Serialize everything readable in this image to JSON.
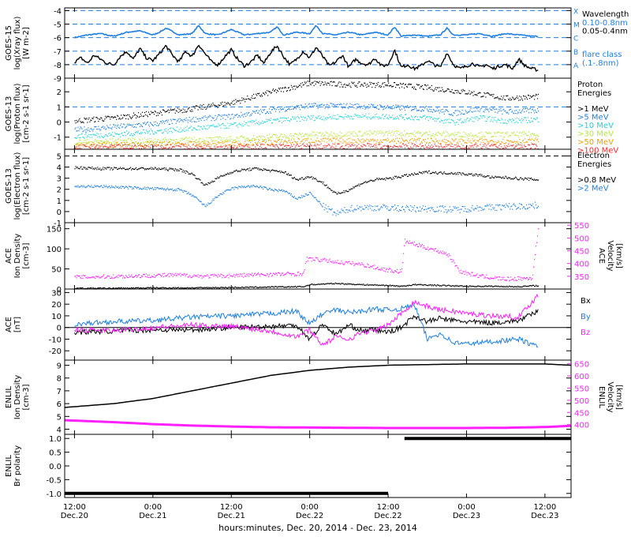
{
  "figure": {
    "x_caption": "hours:minutes, Dec. 20, 2014 - Dec. 23, 2014",
    "x_ticks": [
      {
        "h": 0,
        "time": "12:00",
        "date": "Dec.20"
      },
      {
        "h": 12,
        "time": "0:00",
        "date": "Dec.21"
      },
      {
        "h": 24,
        "time": "12:00",
        "date": "Dec.21"
      },
      {
        "h": 36,
        "time": "0:00",
        "date": "Dec.22"
      },
      {
        "h": 48,
        "time": "12:00",
        "date": "Dec.22"
      },
      {
        "h": 60,
        "time": "0:00",
        "date": "Dec.23"
      },
      {
        "h": 72,
        "time": "12:00",
        "date": "Dec.23"
      }
    ],
    "x_range_hours": [
      -1.5,
      76
    ]
  },
  "chart_data": [
    {
      "id": "xray",
      "type": "line",
      "ylabel": [
        "GOES-15",
        "log(Xray flux)",
        "[W m-2]"
      ],
      "ylim": [
        -9,
        -3.8
      ],
      "yticks": [
        -9,
        -8,
        -7,
        -6,
        -5,
        -4
      ],
      "reference_lines": [
        {
          "y": -4,
          "label": "X"
        },
        {
          "y": -5,
          "label": "M"
        },
        {
          "y": -6,
          "label": "C"
        },
        {
          "y": -7,
          "label": "B"
        },
        {
          "y": -8,
          "label": "A"
        }
      ],
      "legend_title": "Wavelength",
      "legend_note": [
        "flare class",
        "(.1-.8nm)"
      ],
      "series": [
        {
          "name": "0.10-0.8nm",
          "color": "#1e7fe0",
          "width": 1.6,
          "x": [
            0,
            2,
            4,
            6,
            8,
            10,
            12,
            13,
            14,
            16,
            18,
            19,
            20,
            22,
            24,
            26,
            28,
            30,
            31,
            32,
            34,
            36,
            37,
            38,
            40,
            42,
            44,
            46,
            48,
            49,
            50,
            52,
            54,
            56,
            57,
            58,
            60,
            62,
            64,
            66,
            68,
            70,
            71
          ],
          "y": [
            -6.0,
            -5.8,
            -5.7,
            -5.9,
            -5.6,
            -5.5,
            -5.8,
            -5.6,
            -5.3,
            -5.8,
            -5.7,
            -5.1,
            -5.7,
            -5.8,
            -5.4,
            -5.8,
            -5.7,
            -5.6,
            -5.2,
            -5.8,
            -5.6,
            -5.7,
            -5.1,
            -5.7,
            -5.8,
            -5.6,
            -5.8,
            -5.6,
            -5.8,
            -5.2,
            -5.9,
            -5.8,
            -5.9,
            -5.8,
            -5.3,
            -5.8,
            -5.8,
            -5.7,
            -5.9,
            -5.7,
            -5.8,
            -5.9,
            -5.9
          ]
        },
        {
          "name": "0.05-0.4nm",
          "color": "#000000",
          "width": 1.4,
          "x": [
            0,
            1,
            2,
            3,
            4,
            5,
            6,
            7,
            8,
            9,
            10,
            11,
            12,
            13,
            14,
            15,
            16,
            17,
            18,
            19,
            20,
            21,
            22,
            23,
            24,
            25,
            26,
            27,
            28,
            29,
            30,
            31,
            32,
            33,
            34,
            35,
            36,
            37,
            38,
            39,
            40,
            41,
            42,
            43,
            44,
            45,
            46,
            47,
            48,
            49,
            50,
            51,
            52,
            53,
            54,
            55,
            56,
            57,
            58,
            59,
            60,
            61,
            62,
            63,
            64,
            65,
            66,
            67,
            68,
            69,
            70,
            71
          ],
          "y": [
            -7.8,
            -7.5,
            -7.9,
            -7.3,
            -7.6,
            -7.9,
            -8.0,
            -7.4,
            -7.0,
            -7.6,
            -6.8,
            -7.5,
            -7.7,
            -7.2,
            -6.6,
            -7.3,
            -7.8,
            -7.0,
            -7.4,
            -6.5,
            -7.2,
            -7.8,
            -8.0,
            -7.4,
            -6.9,
            -7.6,
            -8.1,
            -7.8,
            -7.3,
            -7.9,
            -7.1,
            -6.6,
            -7.4,
            -8.0,
            -7.6,
            -7.0,
            -7.5,
            -6.7,
            -7.4,
            -8.1,
            -7.8,
            -7.3,
            -8.2,
            -7.6,
            -7.9,
            -8.0,
            -7.5,
            -8.1,
            -8.0,
            -6.9,
            -8.2,
            -8.0,
            -8.3,
            -8.1,
            -7.7,
            -8.0,
            -8.2,
            -7.1,
            -8.0,
            -8.3,
            -8.1,
            -7.9,
            -8.2,
            -8.0,
            -8.3,
            -8.1,
            -8.0,
            -8.3,
            -7.6,
            -8.1,
            -8.3,
            -8.4
          ]
        }
      ]
    },
    {
      "id": "proton",
      "type": "scatter",
      "ylabel": [
        "GOES-13",
        "log(Proton flux)",
        "[cm-2 s-1 sr-1]"
      ],
      "ylim": [
        -1.8,
        2.9
      ],
      "yticks": [
        -1,
        0,
        1,
        2
      ],
      "reference_lines": [
        {
          "y": 1,
          "label": ""
        }
      ],
      "legend_title": "Proton Energies",
      "series": [
        {
          "name": ">1 MeV",
          "color": "#000000",
          "x": [
            0,
            6,
            12,
            18,
            24,
            30,
            36,
            42,
            48,
            54,
            60,
            66,
            71
          ],
          "y": [
            0.1,
            0.3,
            0.6,
            0.9,
            1.3,
            2.0,
            2.6,
            2.5,
            2.5,
            2.3,
            2.0,
            1.6,
            1.7
          ]
        },
        {
          "name": ">5 MeV",
          "color": "#1e7fe0",
          "x": [
            0,
            6,
            12,
            18,
            24,
            30,
            36,
            42,
            48,
            54,
            58,
            62,
            66,
            71
          ],
          "y": [
            -0.5,
            -0.3,
            -0.1,
            0.2,
            0.4,
            0.8,
            1.1,
            1.1,
            1.0,
            0.9,
            0.6,
            0.9,
            0.7,
            0.8
          ]
        },
        {
          "name": ">10 MeV",
          "color": "#22d4d4",
          "x": [
            0,
            6,
            12,
            18,
            24,
            30,
            36,
            42,
            48,
            54,
            58,
            62,
            66,
            71
          ],
          "y": [
            -0.9,
            -0.8,
            -0.6,
            -0.4,
            -0.2,
            0.1,
            0.3,
            0.4,
            0.4,
            0.3,
            0.0,
            0.3,
            0.1,
            0.2
          ]
        },
        {
          "name": ">30 MeV",
          "color": "#b8e838",
          "x": [
            0,
            12,
            24,
            36,
            48,
            60,
            71
          ],
          "y": [
            -1.3,
            -1.2,
            -1.1,
            -0.8,
            -0.7,
            -0.8,
            -0.8
          ]
        },
        {
          "name": ">50 MeV",
          "color": "#f0a000",
          "x": [
            0,
            12,
            24,
            36,
            48,
            60,
            71
          ],
          "y": [
            -1.5,
            -1.45,
            -1.4,
            -1.2,
            -1.2,
            -1.25,
            -1.25
          ]
        },
        {
          "name": ">100 MeV",
          "color": "#ff2a2a",
          "x": [
            0,
            12,
            24,
            36,
            48,
            60,
            71
          ],
          "y": [
            -1.65,
            -1.62,
            -1.62,
            -1.58,
            -1.58,
            -1.6,
            -1.6
          ]
        }
      ]
    },
    {
      "id": "electron",
      "type": "scatter",
      "ylabel": [
        "GOES-13",
        "log(Electron flux)",
        "[cm-2 s-1 sr-1]"
      ],
      "ylim": [
        -1,
        5.6
      ],
      "yticks": [
        -1,
        0,
        1,
        2,
        3,
        4,
        5
      ],
      "reference_lines": [
        {
          "y": 5,
          "label": ""
        }
      ],
      "legend_title": "Electron Energies",
      "series": [
        {
          "name": ">0.8 MeV",
          "color": "#000000",
          "x": [
            0,
            4,
            8,
            12,
            16,
            18,
            20,
            22,
            24,
            26,
            28,
            30,
            32,
            34,
            36,
            38,
            40,
            42,
            44,
            46,
            48,
            50,
            52,
            54,
            56,
            58,
            60,
            62,
            64,
            66,
            68,
            71
          ],
          "y": [
            4.0,
            3.9,
            3.9,
            3.9,
            3.8,
            3.4,
            2.4,
            3.1,
            3.6,
            3.8,
            3.9,
            3.7,
            3.6,
            2.9,
            3.2,
            2.6,
            1.6,
            2.0,
            2.6,
            2.9,
            3.0,
            3.2,
            3.4,
            3.6,
            3.5,
            3.5,
            3.4,
            3.3,
            3.1,
            3.1,
            3.0,
            2.9
          ]
        },
        {
          "name": ">2 MeV",
          "color": "#1e7fe0",
          "x": [
            0,
            4,
            8,
            12,
            16,
            18,
            20,
            22,
            24,
            26,
            28,
            30,
            32,
            34,
            36,
            38,
            40,
            42,
            44,
            46,
            48,
            50,
            52,
            54,
            56,
            58,
            60,
            62,
            64,
            66,
            68,
            71
          ],
          "y": [
            2.3,
            2.3,
            2.2,
            2.1,
            2.0,
            1.5,
            0.5,
            1.5,
            2.1,
            2.3,
            2.3,
            2.0,
            1.9,
            1.2,
            1.7,
            0.5,
            -0.2,
            0.3,
            0.4,
            0.4,
            0.4,
            0.3,
            0.3,
            0.3,
            0.3,
            0.2,
            0.3,
            0.4,
            0.4,
            0.5,
            0.5,
            0.6
          ]
        }
      ]
    },
    {
      "id": "ace_density",
      "type": "scatter",
      "ylabel": [
        "ACE",
        "Ion Density",
        "[cm-3]"
      ],
      "ylabel_right": [
        "ACE",
        "Velocity",
        "[km/s]"
      ],
      "ylim": [
        0,
        165
      ],
      "yticks": [
        0,
        50,
        100,
        150
      ],
      "ylim_right": [
        300,
        560
      ],
      "yticks_right": [
        350,
        400,
        450,
        500,
        550
      ],
      "series": [
        {
          "name": "Ion Density",
          "color": "#000000",
          "axis": "left",
          "x": [
            0,
            6,
            12,
            18,
            24,
            30,
            35,
            36,
            40,
            44,
            48,
            50,
            52,
            56,
            60,
            64,
            68,
            71
          ],
          "y": [
            3,
            3,
            4,
            4,
            5,
            6,
            7,
            12,
            15,
            12,
            10,
            8,
            12,
            10,
            8,
            8,
            7,
            10
          ]
        },
        {
          "name": "Velocity",
          "color": "#ff1fff",
          "axis": "right",
          "x": [
            0,
            4,
            8,
            12,
            16,
            20,
            24,
            28,
            32,
            35,
            35.5,
            38,
            41,
            44,
            47,
            49,
            50,
            50.5,
            53,
            55,
            57,
            59,
            62,
            66,
            70,
            71
          ],
          "y": [
            348,
            350,
            352,
            355,
            356,
            352,
            354,
            358,
            360,
            362,
            420,
            415,
            405,
            398,
            380,
            372,
            370,
            490,
            470,
            455,
            440,
            370,
            352,
            340,
            345,
            555
          ]
        }
      ]
    },
    {
      "id": "ace_mag",
      "type": "line",
      "ylabel": [
        "ACE",
        "[nT]"
      ],
      "ylim": [
        -28,
        33
      ],
      "yticks": [
        -30,
        -20,
        -10,
        0,
        10,
        20,
        30
      ],
      "reference_lines": [
        {
          "y": 0,
          "label": ""
        }
      ],
      "series": [
        {
          "name": "Bx",
          "color": "#000000",
          "x": [
            0,
            6,
            12,
            18,
            24,
            30,
            34,
            36,
            38,
            40,
            42,
            44,
            46,
            48,
            50,
            52,
            54,
            56,
            58,
            60,
            64,
            68,
            71
          ],
          "y": [
            -4,
            -3,
            -2,
            -2,
            0,
            1,
            2,
            -10,
            3,
            -6,
            2,
            -3,
            -2,
            -4,
            0,
            10,
            5,
            8,
            6,
            5,
            4,
            6,
            14
          ]
        },
        {
          "name": "By",
          "color": "#1e7fe0",
          "x": [
            0,
            6,
            12,
            18,
            24,
            30,
            34,
            36,
            38,
            40,
            42,
            44,
            46,
            48,
            50,
            52,
            54,
            56,
            58,
            60,
            64,
            68,
            71
          ],
          "y": [
            3,
            5,
            6,
            9,
            10,
            12,
            14,
            3,
            12,
            15,
            13,
            14,
            16,
            15,
            16,
            20,
            -10,
            -5,
            -13,
            -14,
            -12,
            -10,
            -17
          ]
        },
        {
          "name": "Bz",
          "color": "#ff1fff",
          "x": [
            0,
            6,
            12,
            18,
            24,
            30,
            34,
            36,
            38,
            40,
            42,
            44,
            46,
            48,
            50,
            52,
            54,
            56,
            58,
            60,
            64,
            68,
            71
          ],
          "y": [
            -2,
            -3,
            0,
            2,
            1,
            -3,
            -8,
            -2,
            -15,
            -8,
            -10,
            -4,
            -3,
            2,
            12,
            22,
            18,
            15,
            14,
            12,
            10,
            9,
            28
          ]
        }
      ],
      "series_labels": [
        "Bx",
        "By",
        "Bz"
      ]
    },
    {
      "id": "enlil_density",
      "type": "line",
      "ylabel": [
        "ENLIL",
        "Ion Density",
        "[cm-3]"
      ],
      "ylabel_right": [
        "ENLIL",
        "Velocity",
        "[km/s]"
      ],
      "ylim": [
        3.6,
        9.4
      ],
      "yticks": [
        4,
        5,
        6,
        7,
        8,
        9
      ],
      "ylim_right": [
        360,
        665
      ],
      "yticks_right": [
        400,
        450,
        500,
        550,
        600,
        650
      ],
      "series": [
        {
          "name": "Ion Density",
          "color": "#000000",
          "axis": "left",
          "width": 1.5,
          "x": [
            -1.5,
            6,
            12,
            18,
            24,
            30,
            36,
            42,
            48,
            54,
            60,
            66,
            72,
            76
          ],
          "y": [
            5.7,
            6.0,
            6.4,
            7.0,
            7.6,
            8.2,
            8.6,
            8.85,
            9.0,
            9.05,
            9.1,
            9.1,
            9.1,
            9.0
          ]
        },
        {
          "name": "Velocity",
          "color": "#ff1fff",
          "axis": "right",
          "width": 3,
          "x": [
            -1.5,
            6,
            12,
            18,
            24,
            30,
            36,
            42,
            48,
            54,
            60,
            66,
            72,
            76
          ],
          "y": [
            418,
            410,
            402,
            396,
            392,
            389,
            388,
            387,
            386,
            386,
            386,
            387,
            390,
            395
          ]
        }
      ]
    },
    {
      "id": "enlil_polarity",
      "type": "line",
      "ylabel": [
        "ENLIL",
        "Br polarity"
      ],
      "ylim": [
        -1.15,
        1.15
      ],
      "yticks": [
        -1.0,
        -0.5,
        0.0,
        0.5,
        1.0
      ],
      "series": [
        {
          "name": "Br polarity",
          "color": "#000000",
          "width": 4,
          "x": [
            -1.5,
            48.2,
            48.2,
            50.2,
            50.2,
            76
          ],
          "y": [
            -1,
            -1,
            null,
            null,
            1,
            1
          ]
        }
      ]
    }
  ]
}
